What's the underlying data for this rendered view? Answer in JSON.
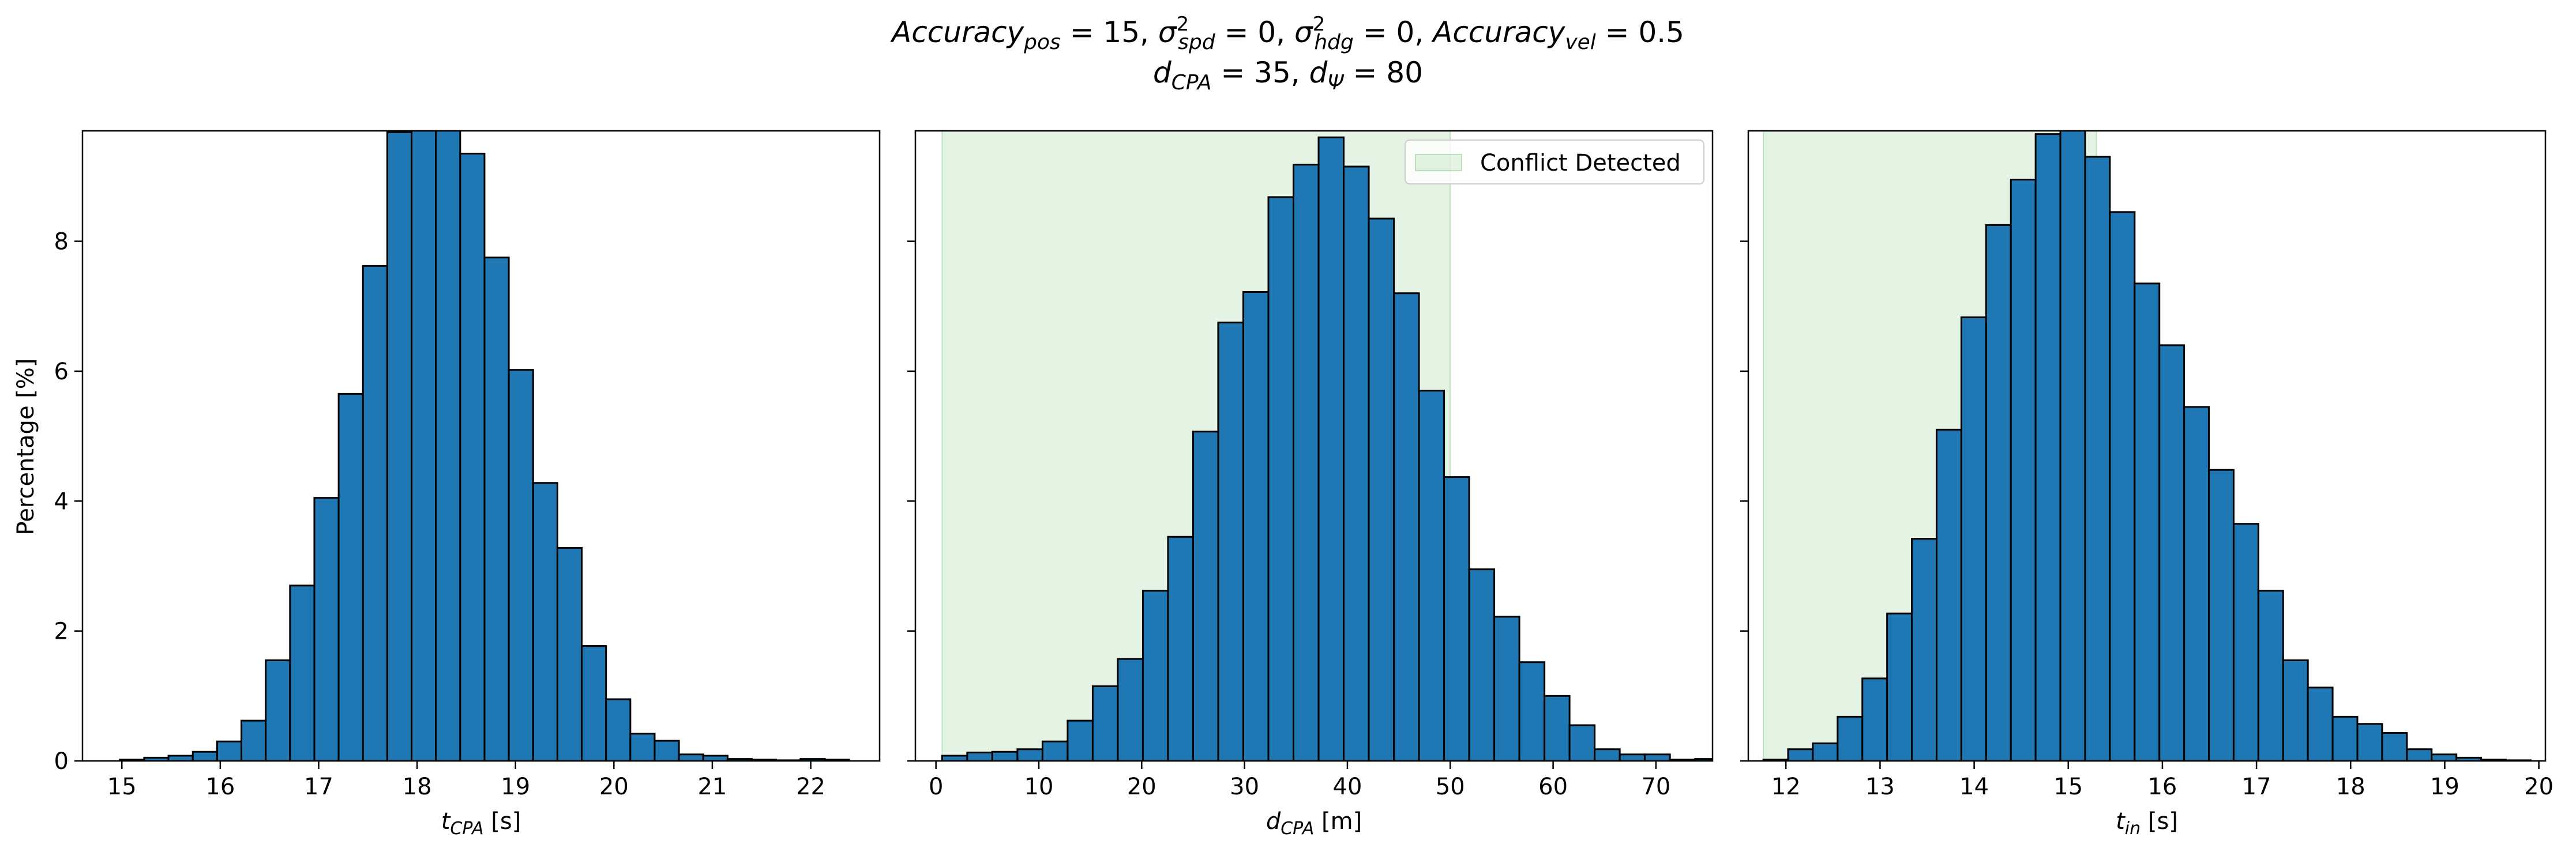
{
  "figure": {
    "title_line1_parts": [
      {
        "t": "Accuracy",
        "s": "i"
      },
      {
        "t": "pos",
        "s": "sub"
      },
      {
        "t": " = 15, ",
        "s": "n"
      },
      {
        "t": "σ",
        "s": "i"
      },
      {
        "t": "2",
        "s": "sup"
      },
      {
        "t": "spd",
        "s": "sub-after-sup"
      },
      {
        "t": " = 0, ",
        "s": "n"
      },
      {
        "t": "σ",
        "s": "i"
      },
      {
        "t": "2",
        "s": "sup"
      },
      {
        "t": "hdg",
        "s": "sub-after-sup"
      },
      {
        "t": " = 0, ",
        "s": "n"
      },
      {
        "t": "Accuracy",
        "s": "i"
      },
      {
        "t": "vel",
        "s": "sub"
      },
      {
        "t": " = 0.5",
        "s": "n"
      }
    ],
    "title_line2_parts": [
      {
        "t": "d",
        "s": "i"
      },
      {
        "t": "CPA",
        "s": "sub"
      },
      {
        "t": " = 35, ",
        "s": "n"
      },
      {
        "t": "d",
        "s": "i"
      },
      {
        "t": "Ψ",
        "s": "sub"
      },
      {
        "t": " = 80",
        "s": "n"
      }
    ],
    "ylabel": "Percentage [%]",
    "bar_color": "#1f77b4",
    "edge_color": "#000000",
    "shade_color": "#2ca02c",
    "legend_label": "Conflict Detected"
  },
  "chart_data": [
    {
      "type": "bar",
      "xlabel_main": "t",
      "xlabel_sub": "CPA",
      "xlabel_unit": " [s]",
      "xlim": [
        14.6,
        22.7
      ],
      "ylim": [
        0,
        9.7
      ],
      "xticks": [
        15,
        16,
        17,
        18,
        19,
        20,
        21,
        22
      ],
      "yticks": [
        0,
        2,
        4,
        6,
        8
      ],
      "show_ytick_labels": true,
      "bin_start": 14.98,
      "bin_width": 0.247,
      "values": [
        0.02,
        0.05,
        0.08,
        0.14,
        0.3,
        0.62,
        1.55,
        2.7,
        4.05,
        5.65,
        7.62,
        9.68,
        9.9,
        9.85,
        9.35,
        7.75,
        6.02,
        4.28,
        3.28,
        1.77,
        0.95,
        0.42,
        0.31,
        0.1,
        0.08,
        0.03,
        0.02,
        0.01,
        0.03,
        0.02
      ],
      "shade": null,
      "legend": false
    },
    {
      "type": "bar",
      "xlabel_main": "d",
      "xlabel_sub": "CPA",
      "xlabel_unit": " [m]",
      "xlim": [
        -2.0,
        75.5
      ],
      "ylim": [
        0,
        9.7
      ],
      "xticks": [
        0,
        10,
        20,
        30,
        40,
        50,
        60,
        70
      ],
      "yticks": [
        0,
        2,
        4,
        6,
        8
      ],
      "show_ytick_labels": false,
      "bin_start": 0.6,
      "bin_width": 2.44,
      "values": [
        0.08,
        0.13,
        0.14,
        0.18,
        0.3,
        0.62,
        1.15,
        1.57,
        2.62,
        3.45,
        5.07,
        6.75,
        7.22,
        8.68,
        9.18,
        9.6,
        9.15,
        8.35,
        7.2,
        5.7,
        4.37,
        2.95,
        2.22,
        1.52,
        1.0,
        0.55,
        0.18,
        0.1,
        0.1,
        0.02,
        0.03
      ],
      "shade": [
        0.6,
        50.0
      ],
      "legend": true
    },
    {
      "type": "bar",
      "xlabel_main": "t",
      "xlabel_sub": "in",
      "xlabel_unit": " [s]",
      "xlim": [
        11.6,
        20.07
      ],
      "ylim": [
        0,
        9.7
      ],
      "xticks": [
        12,
        13,
        14,
        15,
        16,
        17,
        18,
        19,
        20
      ],
      "yticks": [
        0,
        2,
        4,
        6,
        8
      ],
      "show_ytick_labels": false,
      "bin_start": 11.76,
      "bin_width": 0.263,
      "values": [
        0.02,
        0.18,
        0.27,
        0.68,
        1.27,
        2.27,
        3.42,
        5.1,
        6.83,
        8.25,
        8.95,
        9.65,
        9.8,
        9.3,
        8.45,
        7.35,
        6.4,
        5.45,
        4.48,
        3.65,
        2.62,
        1.55,
        1.13,
        0.68,
        0.57,
        0.43,
        0.18,
        0.1,
        0.05,
        0.02,
        0.01
      ],
      "shade": [
        11.76,
        15.3
      ],
      "legend": false
    }
  ]
}
